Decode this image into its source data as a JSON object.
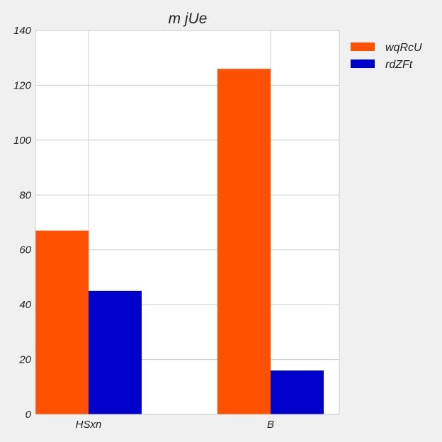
{
  "chart_data": {
    "type": "bar",
    "title": "m  jUe",
    "xlabel": "",
    "ylabel": "",
    "categories": [
      "HSxn",
      "B"
    ],
    "series": [
      {
        "name": "wqRcU",
        "color": "#ff5000",
        "values": [
          67,
          126
        ]
      },
      {
        "name": "rdZFt",
        "color": "#0000cc",
        "values": [
          45,
          16
        ]
      }
    ],
    "ylim": [
      0,
      140
    ],
    "yticks": [
      "0",
      "20",
      "40",
      "60",
      "80",
      "100",
      "120",
      "140"
    ],
    "grid": true,
    "legend": "top-right, outside plot area"
  },
  "colors": {
    "background": "#f0f0f0",
    "plot_background": "#ffffff",
    "grid": "#cbcbcb"
  }
}
